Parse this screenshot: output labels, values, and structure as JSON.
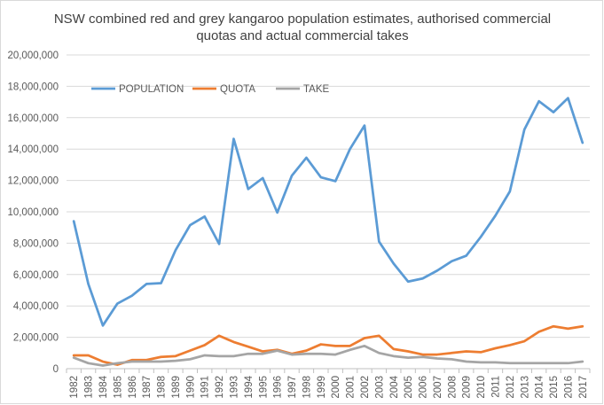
{
  "chart_data": {
    "type": "line",
    "title_lines": [
      "NSW combined red and grey kangaroo population estimates, authorised commercial",
      "quotas and actual commercial takes"
    ],
    "xlabel": "",
    "ylabel": "",
    "ylim": [
      0,
      20000000
    ],
    "y_ticks": [
      0,
      2000000,
      4000000,
      6000000,
      8000000,
      10000000,
      12000000,
      14000000,
      16000000,
      18000000,
      20000000
    ],
    "y_tick_labels": [
      "0",
      "2,000,000",
      "4,000,000",
      "6,000,000",
      "8,000,000",
      "10,000,000",
      "12,000,000",
      "14,000,000",
      "16,000,000",
      "18,000,000",
      "20,000,000"
    ],
    "grid": true,
    "legend_position": "top-left",
    "categories": [
      "1982",
      "1983",
      "1984",
      "1985",
      "1986",
      "1987",
      "1988",
      "1989",
      "1990",
      "1991",
      "1992",
      "1993",
      "1994",
      "1995",
      "1996",
      "1997",
      "1998",
      "1999",
      "2000",
      "2001",
      "2002",
      "2003",
      "2004",
      "2005",
      "2006",
      "2007",
      "2008",
      "2009",
      "2010",
      "2011",
      "2012",
      "2013",
      "2014",
      "2015",
      "2016",
      "2017"
    ],
    "series": [
      {
        "name": "POPULATION",
        "color": "#5b9bd5",
        "values": [
          9400000,
          5400000,
          2750000,
          4150000,
          4650000,
          5400000,
          5450000,
          7550000,
          9150000,
          9700000,
          7950000,
          14650000,
          11450000,
          12150000,
          9950000,
          12300000,
          13450000,
          12200000,
          11950000,
          14000000,
          15500000,
          8100000,
          6700000,
          5550000,
          5750000,
          6250000,
          6850000,
          7200000,
          8400000,
          9750000,
          11300000,
          15250000,
          17050000,
          16350000,
          17250000,
          14400000
        ]
      },
      {
        "name": "QUOTA",
        "color": "#ed7d31",
        "values": [
          850000,
          850000,
          450000,
          250000,
          550000,
          550000,
          750000,
          800000,
          1150000,
          1500000,
          2100000,
          1700000,
          1400000,
          1100000,
          1200000,
          950000,
          1150000,
          1550000,
          1450000,
          1450000,
          1950000,
          2100000,
          1250000,
          1100000,
          900000,
          900000,
          1000000,
          1100000,
          1050000,
          1300000,
          1500000,
          1750000,
          2350000,
          2700000,
          2550000,
          2700000
        ]
      },
      {
        "name": "TAKE",
        "color": "#a5a5a5",
        "values": [
          700000,
          350000,
          200000,
          350000,
          450000,
          450000,
          450000,
          500000,
          600000,
          850000,
          800000,
          800000,
          950000,
          950000,
          1150000,
          900000,
          950000,
          950000,
          900000,
          1200000,
          1450000,
          1000000,
          800000,
          700000,
          750000,
          650000,
          600000,
          450000,
          400000,
          400000,
          350000,
          350000,
          350000,
          350000,
          350000,
          450000
        ]
      }
    ]
  }
}
